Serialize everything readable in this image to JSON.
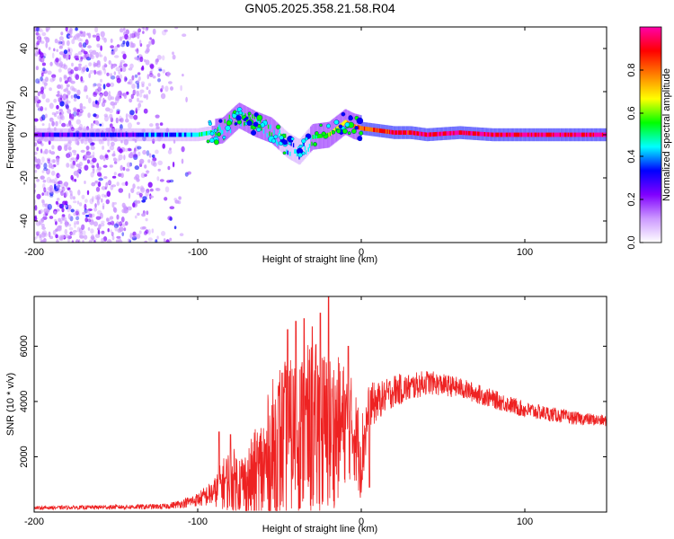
{
  "figure": {
    "title": "GN05.2025.358.21.58.R04"
  },
  "chart_data": [
    {
      "type": "heatmap",
      "name": "spectrogram",
      "xlabel": "Height of straight line (km)",
      "ylabel": "Frequency (Hz)",
      "xlim": [
        -200,
        150
      ],
      "ylim": [
        -50,
        50
      ],
      "x_ticks": [
        -200,
        -100,
        0,
        100
      ],
      "x_tick_labels": [
        "-200",
        "-100",
        "0",
        "100"
      ],
      "y_ticks": [
        -40,
        -20,
        0,
        20,
        40
      ],
      "y_tick_labels": [
        "-40",
        "-20",
        "0",
        "20",
        "40"
      ],
      "colorbar": {
        "label": "Normalized spectral amplitude",
        "range": [
          0,
          1
        ],
        "ticks": [
          0.0,
          0.2,
          0.4,
          0.6,
          0.8
        ],
        "tick_labels": [
          "0.0",
          "0.2",
          "0.4",
          "0.6",
          "0.8"
        ],
        "colors": [
          "#ffffff",
          "#cc99ff",
          "#8000ff",
          "#0000ff",
          "#00ffff",
          "#00ff00",
          "#ffff00",
          "#ff8000",
          "#ff0000",
          "#ff00aa"
        ]
      },
      "ridge": {
        "description_points_x": [
          -200,
          -150,
          -120,
          -100,
          -85,
          -75,
          -65,
          -55,
          -45,
          -38,
          -30,
          -20,
          -10,
          -5,
          0,
          10,
          20,
          30,
          40,
          60,
          80,
          100,
          120,
          150
        ],
        "frequency_hz": [
          0,
          0,
          0,
          0,
          2,
          9,
          5,
          2,
          -5,
          -8,
          -1,
          0,
          6,
          4,
          3,
          2,
          1,
          1,
          0,
          1,
          0,
          0,
          0,
          0
        ],
        "strength": [
          0.25,
          0.3,
          0.35,
          0.45,
          0.5,
          0.55,
          0.55,
          0.5,
          0.45,
          0.4,
          0.5,
          0.6,
          0.7,
          0.75,
          0.8,
          0.85,
          0.9,
          0.9,
          0.95,
          0.95,
          0.95,
          0.95,
          0.95,
          0.95
        ]
      },
      "noise_region_x": [
        -200,
        -100
      ]
    },
    {
      "type": "line",
      "name": "snr",
      "xlabel": "Height of straight line (km)",
      "ylabel": "SNR (10 * v/v)",
      "xlim": [
        -200,
        150
      ],
      "ylim": [
        0,
        7800
      ],
      "x_ticks": [
        -200,
        -100,
        0,
        100
      ],
      "x_tick_labels": [
        "-200",
        "-100",
        "0",
        "100"
      ],
      "y_ticks": [
        2000,
        4000,
        6000
      ],
      "y_tick_labels": [
        "2000",
        "4000",
        "6000"
      ],
      "line_color": "#ee2222",
      "envelope": {
        "x": [
          -200,
          -150,
          -120,
          -110,
          -100,
          -90,
          -85,
          -80,
          -75,
          -70,
          -60,
          -55,
          -50,
          -45,
          -40,
          -35,
          -30,
          -25,
          -20,
          -15,
          -10,
          -5,
          0,
          5,
          10,
          15,
          20,
          30,
          40,
          50,
          60,
          70,
          80,
          90,
          100,
          110,
          120,
          130,
          140,
          150
        ],
        "base": [
          150,
          180,
          200,
          300,
          450,
          700,
          1000,
          1200,
          1100,
          1000,
          1500,
          2000,
          2500,
          2700,
          2800,
          2900,
          3000,
          2900,
          2800,
          3000,
          3200,
          3000,
          2000,
          3800,
          4000,
          4200,
          4400,
          4500,
          4700,
          4600,
          4500,
          4300,
          4100,
          3900,
          3700,
          3600,
          3500,
          3400,
          3350,
          3300
        ],
        "amp": [
          60,
          80,
          100,
          150,
          250,
          500,
          900,
          1200,
          1100,
          1300,
          2200,
          2700,
          3000,
          2800,
          2800,
          3000,
          3200,
          3200,
          3000,
          2700,
          2200,
          1800,
          1600,
          900,
          700,
          600,
          600,
          500,
          450,
          400,
          380,
          360,
          340,
          320,
          300,
          280,
          260,
          240,
          220,
          200
        ]
      },
      "spikes": [
        {
          "x": -87,
          "y": 2900
        },
        {
          "x": -80,
          "y": 2800
        },
        {
          "x": -45,
          "y": 6600
        },
        {
          "x": -40,
          "y": 6900
        },
        {
          "x": -35,
          "y": 7000
        },
        {
          "x": -30,
          "y": 6700
        },
        {
          "x": -25,
          "y": 7200
        },
        {
          "x": -20,
          "y": 7800
        },
        {
          "x": -8,
          "y": 6000
        },
        {
          "x": 5,
          "y": 900
        }
      ]
    }
  ]
}
